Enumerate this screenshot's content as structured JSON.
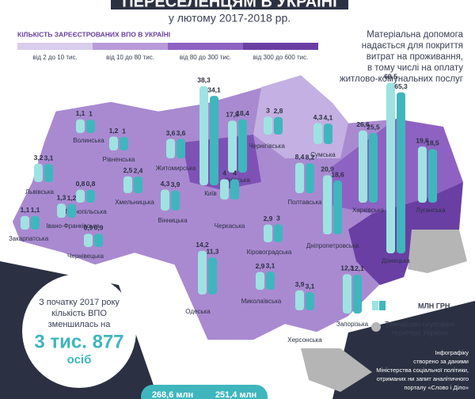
{
  "header": {
    "title": "ПЕРЕСЕЛЕНЦЯМ В УКРАЇНІ",
    "subtitle": "у лютому 2017-2018 рр."
  },
  "legend": {
    "title": "КІЛЬКІСТЬ ЗАРЕЄСТРОВАНИХ ВПО В УКРАЇНІ",
    "items": [
      "від 2 до 10 тис.",
      "від 10 до 80 тис.",
      "від 80 до 300 тис.",
      "від 300 до 600 тис."
    ],
    "colors": [
      "#d9cdec",
      "#b99ad8",
      "#8e62c2",
      "#6a3fa3"
    ]
  },
  "note": [
    "Матеріальна допомога",
    "надається для покриття",
    "витрат на проживання,",
    "в тому числі на оплату",
    "житлово-комунальних послуг"
  ],
  "regions": [
    {
      "name": "Волинська",
      "values": [
        1.1,
        1
      ],
      "value_labels": [
        "1,1",
        "1"
      ]
    },
    {
      "name": "Рівненська",
      "values": [
        1.2,
        1
      ],
      "value_labels": [
        "1,2",
        "1"
      ]
    },
    {
      "name": "Житомирська",
      "values": [
        3.6,
        3.6
      ],
      "value_labels": [
        "3,6",
        "3,6"
      ]
    },
    {
      "name": "Київ",
      "values": [
        38.3,
        34.1
      ],
      "value_labels": [
        "38,3",
        "34,1"
      ]
    },
    {
      "name": "Київська",
      "values": [
        17.8,
        18.4
      ],
      "value_labels": [
        "17,8",
        "18,4"
      ]
    },
    {
      "name": "Чернігівська",
      "values": [
        3,
        2.8
      ],
      "value_labels": [
        "3",
        "2,8"
      ]
    },
    {
      "name": "Сумська",
      "values": [
        4.3,
        4.1
      ],
      "value_labels": [
        "4,3",
        "4,1"
      ]
    },
    {
      "name": "Харківська",
      "values": [
        26.6,
        25.5
      ],
      "value_labels": [
        "26,6",
        "25,5"
      ]
    },
    {
      "name": "Луганська",
      "values": [
        19.6,
        18.5
      ],
      "value_labels": [
        "19,6",
        "18,5"
      ]
    },
    {
      "name": "Донецька",
      "values": [
        69.5,
        65.3
      ],
      "value_labels": [
        "69,5",
        "65,3"
      ]
    },
    {
      "name": "Львівська",
      "values": [
        3.2,
        3.1
      ],
      "value_labels": [
        "3,2",
        "3,1"
      ]
    },
    {
      "name": "Тернопільська",
      "values": [
        0.8,
        0.8
      ],
      "value_labels": [
        "0,8",
        "0,8"
      ]
    },
    {
      "name": "Хмельницька",
      "values": [
        2.5,
        2.4
      ],
      "value_labels": [
        "2,5",
        "2,4"
      ]
    },
    {
      "name": "Закарпатська",
      "values": [
        1.1,
        1.1
      ],
      "value_labels": [
        "1,1",
        "1,1"
      ]
    },
    {
      "name": "Івано-Франківська",
      "values": [
        1.3,
        1.2
      ],
      "value_labels": [
        "1,3",
        "1,2"
      ]
    },
    {
      "name": "Чернівецька",
      "values": [
        0.9,
        0.9
      ],
      "value_labels": [
        "0,9",
        "0,9"
      ]
    },
    {
      "name": "Вінницька",
      "values": [
        4.3,
        3.9
      ],
      "value_labels": [
        "4,3",
        "3,9"
      ]
    },
    {
      "name": "Черкаська",
      "values": [
        4,
        4
      ],
      "value_labels": [
        "4",
        "4"
      ]
    },
    {
      "name": "Полтавська",
      "values": [
        8.4,
        8.2
      ],
      "value_labels": [
        "8,4",
        "8,2"
      ]
    },
    {
      "name": "Дніпропетровська",
      "values": [
        20.9,
        18.6
      ],
      "value_labels": [
        "20,9",
        "18,6"
      ]
    },
    {
      "name": "Кіровоградська",
      "values": [
        2.9,
        3
      ],
      "value_labels": [
        "2,9",
        "3"
      ]
    },
    {
      "name": "Одеська",
      "values": [
        14.2,
        11.3
      ],
      "value_labels": [
        "14,2",
        "11,3"
      ]
    },
    {
      "name": "Миколаївська",
      "values": [
        2.9,
        3.1
      ],
      "value_labels": [
        "2,9",
        "3,1"
      ]
    },
    {
      "name": "Херсонська",
      "values": [
        3.9,
        3.1
      ],
      "value_labels": [
        "3,9",
        "3,1"
      ]
    },
    {
      "name": "Запорізька",
      "values": [
        12.3,
        12.1
      ],
      "value_labels": [
        "12,3",
        "12,1"
      ]
    }
  ],
  "callout": {
    "lines": [
      "З початку 2017 року",
      "кількість ВПО",
      "зменшилась на"
    ],
    "number": "3 тис. 877",
    "unit": "осіб"
  },
  "key": {
    "bars": "МЛН ГРН",
    "occupied": [
      "Тимчасово окуповані",
      "території України"
    ]
  },
  "source": [
    "Інфографіку",
    "створено за даними",
    "Міністерства соціальної політики,",
    "отриманих ни запит аналітичного",
    "порталу «Слово і Діло»"
  ],
  "totals": [
    "268,6 млн",
    "251,4 млн"
  ]
}
